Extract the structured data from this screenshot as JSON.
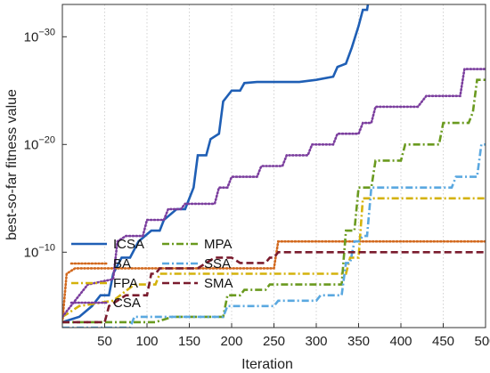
{
  "chart_data": {
    "type": "line",
    "xlabel": "Iteration",
    "ylabel": "best-so-far fitness value",
    "xlim": [
      0,
      500
    ],
    "ylim_exponent": [
      -33,
      -3
    ],
    "y_scale": "log",
    "grid": true,
    "legend_placement": "bottom-left",
    "x_ticks": [
      50,
      100,
      150,
      200,
      250,
      300,
      350,
      400,
      450,
      500
    ],
    "x_tick_labels": [
      "50",
      "100",
      "150",
      "200",
      "250",
      "300",
      "350",
      "400",
      "450",
      "500"
    ],
    "y_ticks": [
      {
        "exp": -10,
        "base": "10",
        "sup": "−10"
      },
      {
        "exp": -20,
        "base": "10",
        "sup": "−20"
      },
      {
        "exp": -30,
        "base": "10",
        "sup": "−30"
      }
    ],
    "series": [
      {
        "name": "ICSA",
        "color": "#1f5fb5",
        "dash": "solid",
        "points": [
          [
            0,
            -3.5
          ],
          [
            20,
            -4
          ],
          [
            35,
            -5
          ],
          [
            45,
            -6
          ],
          [
            55,
            -6
          ],
          [
            60,
            -8
          ],
          [
            70,
            -9.5
          ],
          [
            80,
            -9.5
          ],
          [
            90,
            -11
          ],
          [
            105,
            -12
          ],
          [
            115,
            -12
          ],
          [
            120,
            -13
          ],
          [
            135,
            -14
          ],
          [
            145,
            -14
          ],
          [
            155,
            -16
          ],
          [
            160,
            -19
          ],
          [
            170,
            -19
          ],
          [
            175,
            -20.5
          ],
          [
            185,
            -21
          ],
          [
            190,
            -24
          ],
          [
            200,
            -25
          ],
          [
            210,
            -25
          ],
          [
            215,
            -25.7
          ],
          [
            230,
            -25.8
          ],
          [
            280,
            -25.8
          ],
          [
            300,
            -26
          ],
          [
            320,
            -26.3
          ],
          [
            325,
            -27.2
          ],
          [
            335,
            -27.5
          ],
          [
            342,
            -29
          ],
          [
            350,
            -31
          ],
          [
            355,
            -32.5
          ],
          [
            360,
            -32.5
          ],
          [
            362,
            -33.5
          ]
        ]
      },
      {
        "name": "BA",
        "color": "#d2691e",
        "dash": "dot",
        "points": [
          [
            0,
            -3.5
          ],
          [
            5,
            -8
          ],
          [
            15,
            -8.5
          ],
          [
            120,
            -8.5
          ],
          [
            250,
            -8.5
          ],
          [
            255,
            -11
          ],
          [
            500,
            -11
          ]
        ]
      },
      {
        "name": "FPA",
        "color": "#d4b20b",
        "dash": "dashdot",
        "points": [
          [
            0,
            -4
          ],
          [
            20,
            -5
          ],
          [
            60,
            -5.5
          ],
          [
            85,
            -7
          ],
          [
            110,
            -7
          ],
          [
            115,
            -8
          ],
          [
            150,
            -8
          ],
          [
            270,
            -8
          ],
          [
            335,
            -8
          ],
          [
            340,
            -9.5
          ],
          [
            350,
            -9.5
          ],
          [
            355,
            -15
          ],
          [
            500,
            -15
          ]
        ]
      },
      {
        "name": "CSA",
        "color": "#7b3e9e",
        "dash": "dot",
        "points": [
          [
            0,
            -4
          ],
          [
            20,
            -6
          ],
          [
            30,
            -7
          ],
          [
            60,
            -7.5
          ],
          [
            65,
            -11
          ],
          [
            75,
            -11.5
          ],
          [
            95,
            -11.5
          ],
          [
            100,
            -13
          ],
          [
            120,
            -13
          ],
          [
            125,
            -14
          ],
          [
            140,
            -14
          ],
          [
            145,
            -14.5
          ],
          [
            180,
            -14.5
          ],
          [
            185,
            -16
          ],
          [
            195,
            -16
          ],
          [
            200,
            -17
          ],
          [
            230,
            -17
          ],
          [
            235,
            -18
          ],
          [
            260,
            -18
          ],
          [
            265,
            -19
          ],
          [
            290,
            -19
          ],
          [
            295,
            -20
          ],
          [
            320,
            -20
          ],
          [
            325,
            -21
          ],
          [
            350,
            -21
          ],
          [
            355,
            -22
          ],
          [
            365,
            -22
          ],
          [
            370,
            -23.5
          ],
          [
            420,
            -23.5
          ],
          [
            430,
            -24.5
          ],
          [
            470,
            -24.5
          ],
          [
            475,
            -27
          ],
          [
            500,
            -27
          ]
        ]
      },
      {
        "name": "MPA",
        "color": "#6a9a1f",
        "dash": "dashdot",
        "points": [
          [
            0,
            -3.5
          ],
          [
            110,
            -3.5
          ],
          [
            130,
            -4
          ],
          [
            190,
            -4
          ],
          [
            195,
            -6
          ],
          [
            210,
            -6
          ],
          [
            215,
            -6.5
          ],
          [
            240,
            -6.5
          ],
          [
            245,
            -7
          ],
          [
            330,
            -7
          ],
          [
            335,
            -12
          ],
          [
            345,
            -12
          ],
          [
            350,
            -16
          ],
          [
            365,
            -16
          ],
          [
            370,
            -18.5
          ],
          [
            400,
            -18.5
          ],
          [
            405,
            -20
          ],
          [
            445,
            -20
          ],
          [
            450,
            -22
          ],
          [
            480,
            -22
          ],
          [
            485,
            -23
          ],
          [
            490,
            -26
          ],
          [
            500,
            -26
          ]
        ]
      },
      {
        "name": "SSA",
        "color": "#5aa8e0",
        "dash": "dashdot",
        "points": [
          [
            0,
            -3
          ],
          [
            80,
            -3
          ],
          [
            85,
            -4
          ],
          [
            190,
            -4
          ],
          [
            195,
            -5
          ],
          [
            250,
            -5
          ],
          [
            255,
            -5.5
          ],
          [
            300,
            -5.5
          ],
          [
            305,
            -6
          ],
          [
            330,
            -6
          ],
          [
            335,
            -9
          ],
          [
            340,
            -9
          ],
          [
            345,
            -11
          ],
          [
            350,
            -11
          ],
          [
            355,
            -11.5
          ],
          [
            360,
            -11.5
          ],
          [
            365,
            -16
          ],
          [
            460,
            -16
          ],
          [
            465,
            -17
          ],
          [
            490,
            -17
          ],
          [
            495,
            -20
          ],
          [
            500,
            -20
          ]
        ]
      },
      {
        "name": "SMA",
        "color": "#7a1c2e",
        "dash": "dash",
        "points": [
          [
            0,
            -3.5
          ],
          [
            50,
            -3.5
          ],
          [
            55,
            -5
          ],
          [
            65,
            -5.5
          ],
          [
            75,
            -6
          ],
          [
            100,
            -6
          ],
          [
            105,
            -8
          ],
          [
            110,
            -8
          ],
          [
            115,
            -8.5
          ],
          [
            160,
            -8.5
          ],
          [
            170,
            -9
          ],
          [
            180,
            -9.5
          ],
          [
            200,
            -9.5
          ],
          [
            210,
            -9
          ],
          [
            240,
            -9
          ],
          [
            245,
            -9.5
          ],
          [
            250,
            -9.5
          ],
          [
            255,
            -10
          ],
          [
            500,
            -10
          ]
        ]
      }
    ]
  }
}
